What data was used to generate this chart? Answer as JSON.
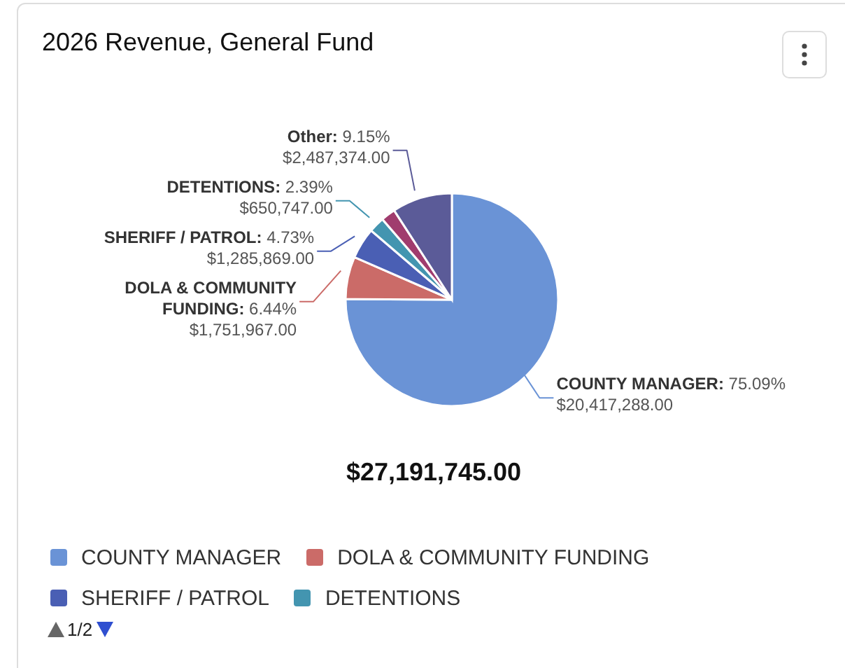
{
  "chart_data": {
    "type": "pie",
    "title": "2026 Revenue, General Fund",
    "categories": [
      "COUNTY MANAGER",
      "DOLA & COMMUNITY FUNDING",
      "SHERIFF / PATROL",
      "DETENTIONS",
      null,
      "Other"
    ],
    "values": [
      20417288,
      1751967,
      1285869,
      650747,
      598500,
      2487374
    ],
    "colors": [
      "#6a93d6",
      "#cb6b68",
      "#4a5fb4",
      "#4395b0",
      "#a03c6e",
      "#5b5b98"
    ],
    "value_labels": [
      ": 75.09%\n$20,417,288.00",
      ": 6.44%\n$1,751,967.00",
      ": 4.73%\n$1,285,869.00",
      ": 2.39%\n$650,747.00",
      null,
      ": 9.15%\n$2,487,374.00"
    ],
    "annotations": [
      "$27,191,745.00",
      "1/2"
    ],
    "legend": "bottom"
  }
}
